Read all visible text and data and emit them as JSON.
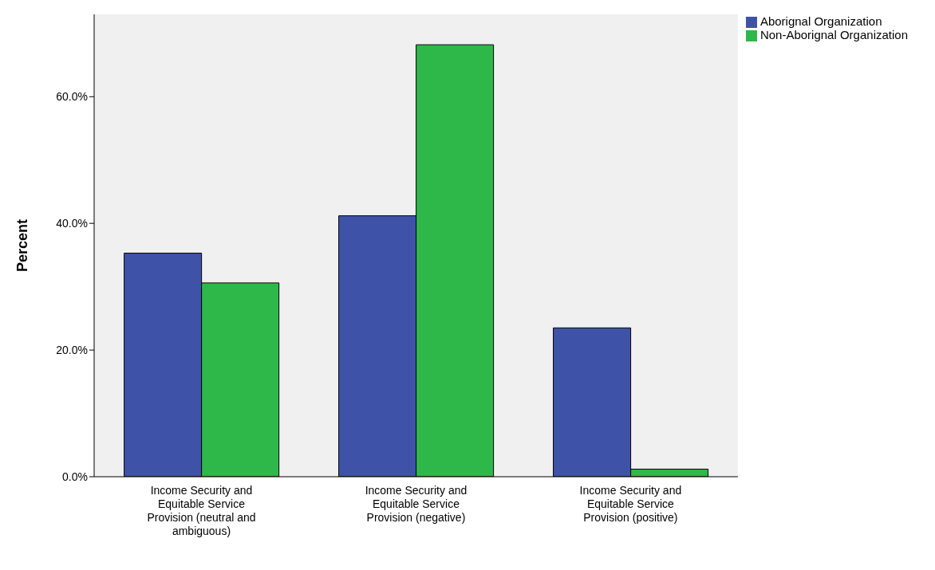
{
  "chart_data": {
    "type": "bar",
    "ylabel": "Percent",
    "categories": [
      "Income Security and Equitable Service Provision (neutral and ambiguous)",
      "Income Security and Equitable Service Provision (negative)",
      "Income Security and Equitable Service Provision (positive)"
    ],
    "series": [
      {
        "name": "Aborignal Organization",
        "color": "#3e53a8",
        "values": [
          35.3,
          41.2,
          23.5
        ]
      },
      {
        "name": "Non-Aborignal Organization",
        "color": "#2fb84a",
        "values": [
          30.6,
          68.2,
          1.2
        ]
      }
    ],
    "ylim": [
      0,
      73
    ],
    "yticks": [
      {
        "value": 0,
        "label": "0.0%"
      },
      {
        "value": 20,
        "label": "20.0%"
      },
      {
        "value": 40,
        "label": "40.0%"
      },
      {
        "value": 60,
        "label": "60.0%"
      }
    ],
    "grid": false,
    "legend": "top right"
  }
}
